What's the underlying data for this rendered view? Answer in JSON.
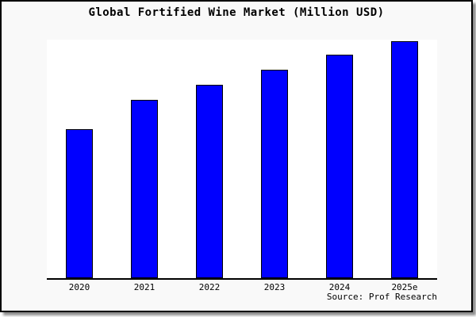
{
  "footer": {
    "source": "Source: Prof Research"
  },
  "colors": {
    "frame_background": "#f9f9f9",
    "plot_background": "#ffffff",
    "frame_border": "#000000",
    "axis_line": "#000000"
  },
  "chart_data": {
    "type": "bar",
    "title": "Global Fortified Wine Market (Million USD)",
    "categories": [
      "2020",
      "2021",
      "2022",
      "2023",
      "2024",
      "2025e"
    ],
    "values_percent_of_max": [
      62.9,
      75.3,
      81.6,
      88.0,
      94.3,
      100
    ],
    "bar_color": "#0000ff",
    "bar_border_color": "#000000",
    "xlabel": "",
    "ylabel": "",
    "y_axis_visible": false,
    "gridlines": false,
    "legend": false,
    "note": "No y-axis scale or value labels shown in the image; values are bar heights relative to the tallest bar (2025e = 100)."
  }
}
